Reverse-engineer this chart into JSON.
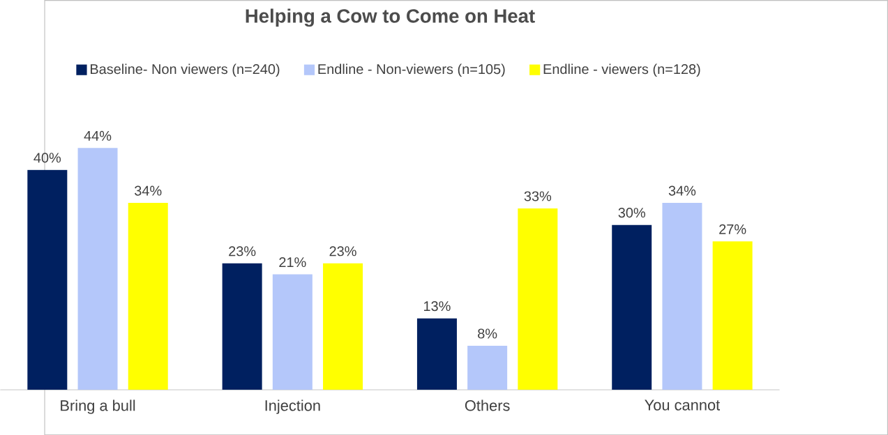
{
  "chart_data": {
    "type": "bar",
    "title": "Helping a Cow to Come on Heat",
    "categories": [
      "Bring a bull",
      "Injection",
      "Others",
      "You cannot"
    ],
    "legend": "top",
    "series": [
      {
        "name": "Baseline- Non viewers (n=240)",
        "color": "#002060",
        "values": [
          40,
          23,
          13,
          30
        ],
        "value_labels": [
          "40%",
          "23%",
          "13%",
          "30%"
        ]
      },
      {
        "name": "Endline - Non-viewers (n=105)",
        "color": "#b4c7fa",
        "values": [
          44,
          21,
          8,
          34
        ],
        "value_labels": [
          "44%",
          "21%",
          "8%",
          "34%"
        ]
      },
      {
        "name": "Endline - viewers (n=128)",
        "color": "#ffff00",
        "values": [
          34,
          23,
          33,
          27
        ],
        "value_labels": [
          "34%",
          "23%",
          "33%",
          "27%"
        ]
      }
    ]
  }
}
